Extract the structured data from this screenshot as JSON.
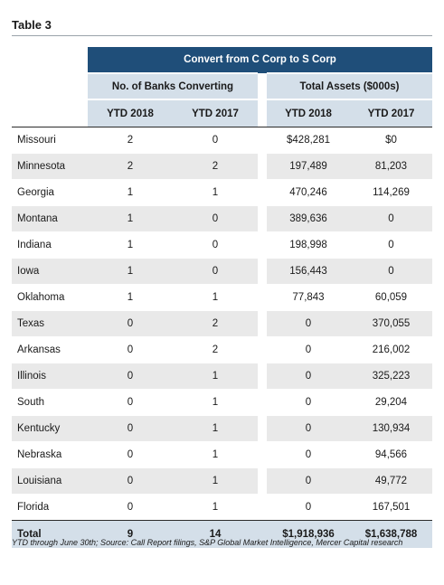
{
  "title": "Table 3",
  "banner": "Convert from C Corp to S Corp",
  "groups": {
    "banks": "No. of Banks Converting",
    "assets": "Total Assets ($000s)"
  },
  "years": [
    "YTD 2018",
    "YTD 2017",
    "YTD 2018",
    "YTD 2017"
  ],
  "rows": [
    {
      "state": "Missouri",
      "banks_2018": "2",
      "banks_2017": "0",
      "assets_2018": "$428,281",
      "assets_2017": "$0"
    },
    {
      "state": "Minnesota",
      "banks_2018": "2",
      "banks_2017": "2",
      "assets_2018": "197,489",
      "assets_2017": "81,203"
    },
    {
      "state": "Georgia",
      "banks_2018": "1",
      "banks_2017": "1",
      "assets_2018": "470,246",
      "assets_2017": "114,269"
    },
    {
      "state": "Montana",
      "banks_2018": "1",
      "banks_2017": "0",
      "assets_2018": "389,636",
      "assets_2017": "0"
    },
    {
      "state": "Indiana",
      "banks_2018": "1",
      "banks_2017": "0",
      "assets_2018": "198,998",
      "assets_2017": "0"
    },
    {
      "state": "Iowa",
      "banks_2018": "1",
      "banks_2017": "0",
      "assets_2018": "156,443",
      "assets_2017": "0"
    },
    {
      "state": "Oklahoma",
      "banks_2018": "1",
      "banks_2017": "1",
      "assets_2018": "77,843",
      "assets_2017": "60,059"
    },
    {
      "state": "Texas",
      "banks_2018": "0",
      "banks_2017": "2",
      "assets_2018": "0",
      "assets_2017": "370,055"
    },
    {
      "state": "Arkansas",
      "banks_2018": "0",
      "banks_2017": "2",
      "assets_2018": "0",
      "assets_2017": "216,002"
    },
    {
      "state": "Illinois",
      "banks_2018": "0",
      "banks_2017": "1",
      "assets_2018": "0",
      "assets_2017": "325,223"
    },
    {
      "state": "South",
      "banks_2018": "0",
      "banks_2017": "1",
      "assets_2018": "0",
      "assets_2017": "29,204"
    },
    {
      "state": "Kentucky",
      "banks_2018": "0",
      "banks_2017": "1",
      "assets_2018": "0",
      "assets_2017": "130,934"
    },
    {
      "state": "Nebraska",
      "banks_2018": "0",
      "banks_2017": "1",
      "assets_2018": "0",
      "assets_2017": "94,566"
    },
    {
      "state": "Louisiana",
      "banks_2018": "0",
      "banks_2017": "1",
      "assets_2018": "0",
      "assets_2017": "49,772"
    },
    {
      "state": "Florida",
      "banks_2018": "0",
      "banks_2017": "1",
      "assets_2018": "0",
      "assets_2017": "167,501"
    }
  ],
  "total": {
    "label": "Total",
    "banks_2018": "9",
    "banks_2017": "14",
    "assets_2018": "$1,918,936",
    "assets_2017": "$1,638,788"
  },
  "footnote": "YTD through June 30th;  Source:  Call Report filings, S&P Global Market Intelligence, Mercer Capital research",
  "colors": {
    "banner": "#1f4e79",
    "header": "#d4dfe9",
    "shade": "#e9e9e9"
  }
}
